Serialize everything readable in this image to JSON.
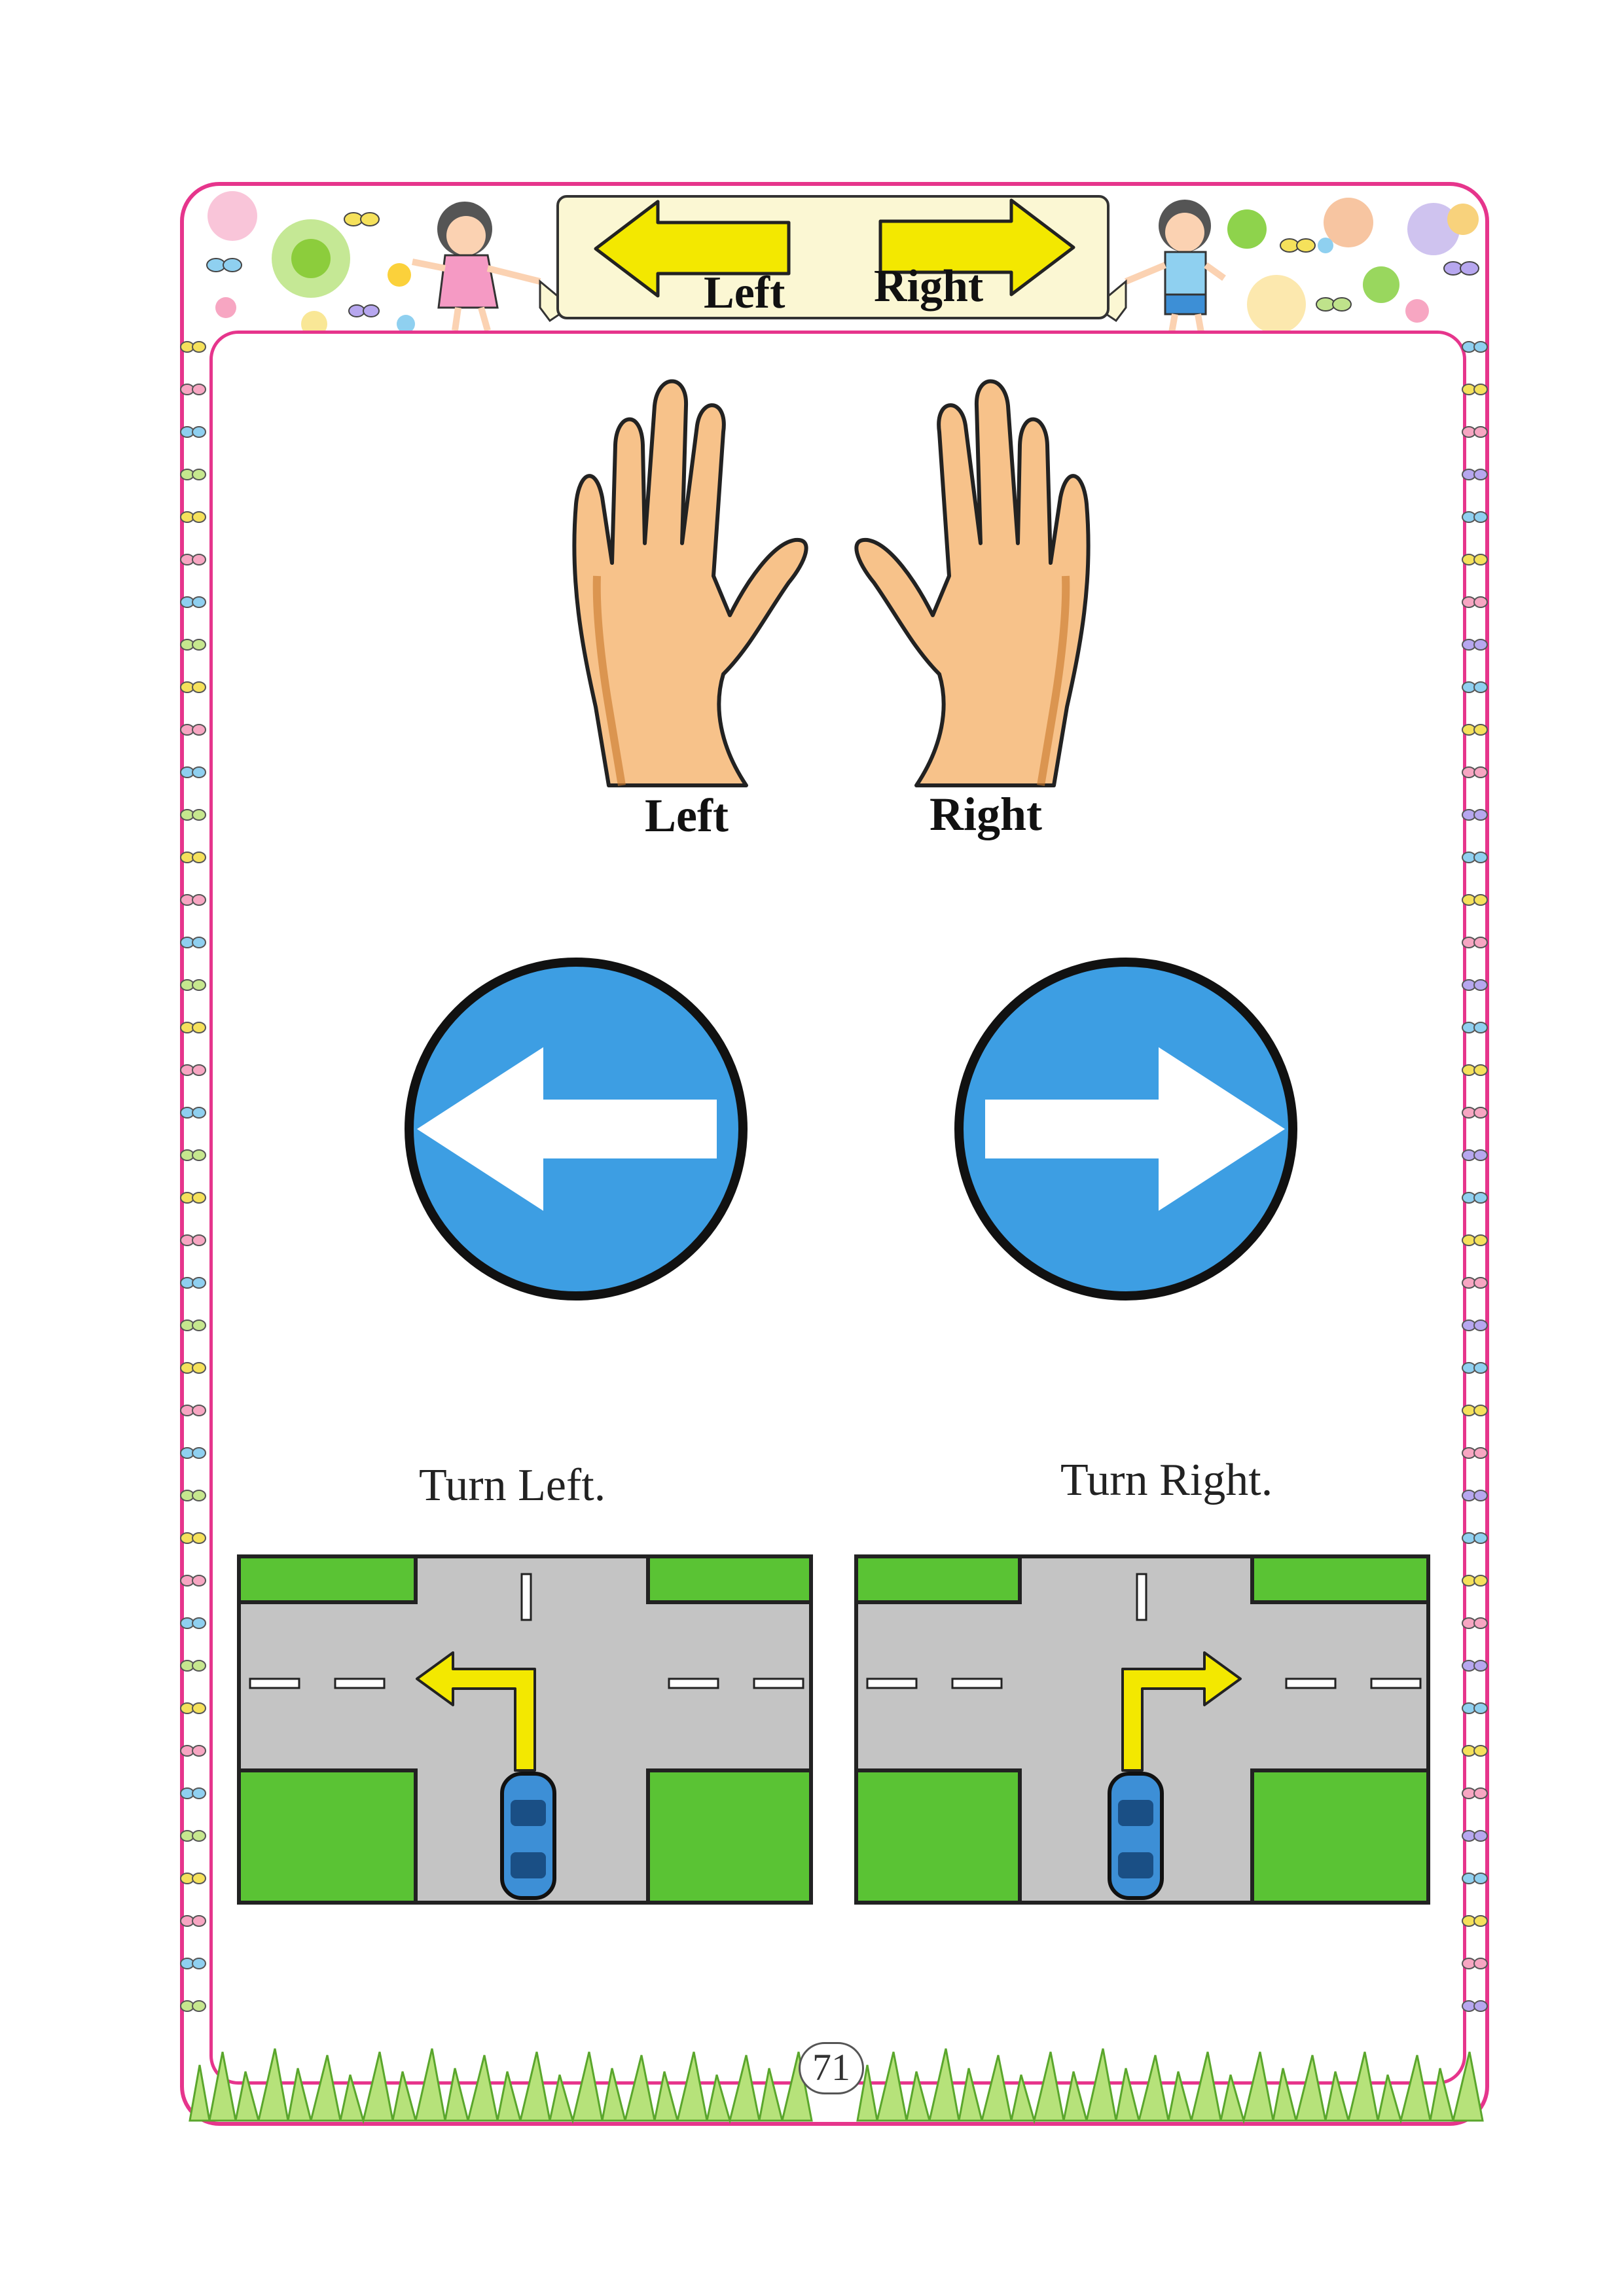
{
  "banner": {
    "left_label": "Left",
    "right_label": "Right"
  },
  "hands": {
    "left_label": "Left",
    "right_label": "Right"
  },
  "turns": {
    "left_caption": "Turn Left.",
    "right_caption": "Turn Right."
  },
  "page": {
    "number": "71"
  },
  "colors": {
    "frame": "#e6358c",
    "sign_blue": "#3d9ee3",
    "road_gray": "#c4c4c4",
    "grass_green": "#5ac334",
    "arrow_yellow": "#f3e800",
    "car_blue": "#3d8fd6",
    "skin": "#f7c28a"
  },
  "icons": [
    "left-arrow-icon",
    "right-arrow-icon",
    "left-hand-icon",
    "right-hand-icon",
    "turn-left-sign-icon",
    "turn-right-sign-icon",
    "car-icon"
  ]
}
